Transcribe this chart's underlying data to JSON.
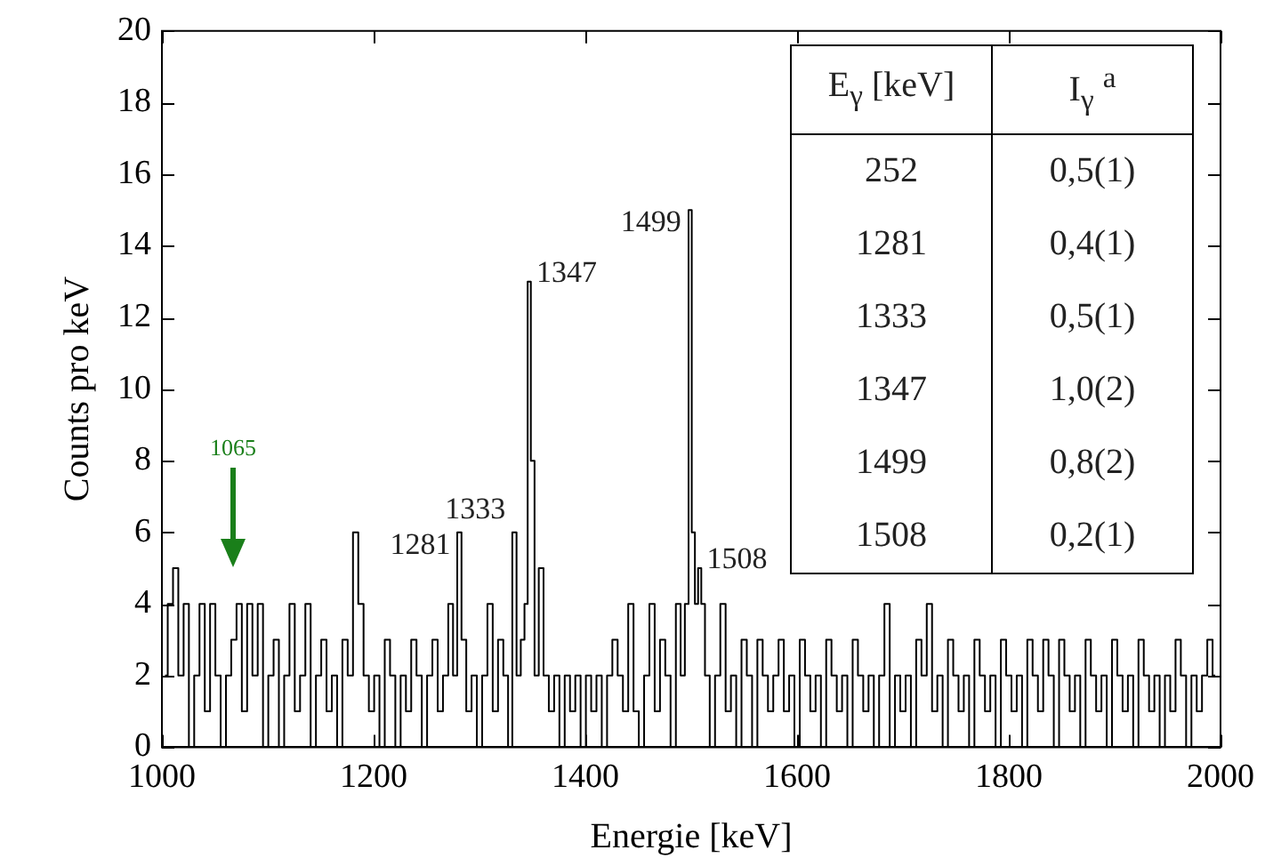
{
  "chart_data": {
    "type": "step",
    "xlabel": "Energie [keV]",
    "ylabel": "Counts pro keV",
    "xlim": [
      1000,
      2000
    ],
    "xticks": [
      1000,
      1200,
      1400,
      1600,
      1800,
      2000
    ],
    "ylim": [
      0,
      20
    ],
    "yticks": [
      0,
      2,
      4,
      6,
      8,
      10,
      12,
      14,
      16,
      18,
      20
    ],
    "grid": false,
    "legend": false,
    "series": [
      {
        "color": "#000000",
        "x": [
          1003,
          1008,
          1013,
          1018,
          1023,
          1028,
          1033,
          1038,
          1043,
          1048,
          1053,
          1058,
          1063,
          1068,
          1073,
          1078,
          1083,
          1088,
          1093,
          1098,
          1103,
          1108,
          1113,
          1118,
          1123,
          1128,
          1133,
          1138,
          1143,
          1148,
          1153,
          1158,
          1163,
          1168,
          1173,
          1178,
          1183,
          1188,
          1193,
          1198,
          1203,
          1208,
          1213,
          1218,
          1223,
          1228,
          1233,
          1238,
          1243,
          1248,
          1253,
          1258,
          1263,
          1268,
          1273,
          1277,
          1281,
          1285,
          1290,
          1295,
          1300,
          1305,
          1310,
          1315,
          1320,
          1325,
          1329,
          1333,
          1337,
          1341,
          1344,
          1347,
          1350,
          1354,
          1358,
          1363,
          1368,
          1373,
          1378,
          1383,
          1388,
          1393,
          1398,
          1403,
          1408,
          1413,
          1418,
          1423,
          1428,
          1433,
          1438,
          1443,
          1448,
          1453,
          1458,
          1463,
          1468,
          1473,
          1478,
          1483,
          1488,
          1492,
          1496,
          1499,
          1502,
          1505,
          1508,
          1511,
          1515,
          1520,
          1525,
          1530,
          1535,
          1540,
          1545,
          1550,
          1555,
          1560,
          1565,
          1570,
          1575,
          1580,
          1585,
          1590,
          1595,
          1600,
          1605,
          1610,
          1615,
          1620,
          1625,
          1630,
          1635,
          1640,
          1645,
          1650,
          1655,
          1660,
          1665,
          1670,
          1675,
          1680,
          1685,
          1690,
          1695,
          1700,
          1705,
          1710,
          1715,
          1720,
          1725,
          1730,
          1735,
          1740,
          1745,
          1750,
          1755,
          1760,
          1765,
          1770,
          1775,
          1780,
          1785,
          1790,
          1795,
          1800,
          1805,
          1810,
          1815,
          1820,
          1825,
          1830,
          1835,
          1840,
          1845,
          1850,
          1855,
          1860,
          1865,
          1870,
          1875,
          1880,
          1885,
          1890,
          1895,
          1900,
          1905,
          1910,
          1915,
          1920,
          1925,
          1930,
          1935,
          1940,
          1945,
          1950,
          1955,
          1960,
          1965,
          1970,
          1975,
          1980,
          1985,
          1990,
          1995
        ],
        "values": [
          2,
          4,
          5,
          2,
          4,
          0,
          2,
          4,
          1,
          4,
          2,
          0,
          2,
          3,
          4,
          1,
          4,
          2,
          4,
          0,
          2,
          3,
          0,
          2,
          4,
          1,
          2,
          4,
          0,
          2,
          3,
          1,
          2,
          0,
          3,
          2,
          6,
          4,
          2,
          1,
          2,
          0,
          3,
          2,
          0,
          2,
          1,
          3,
          2,
          0,
          2,
          3,
          1,
          2,
          4,
          2,
          6,
          3,
          1,
          2,
          0,
          2,
          4,
          1,
          3,
          2,
          0,
          6,
          2,
          3,
          4,
          13,
          8,
          2,
          5,
          2,
          1,
          2,
          0,
          2,
          1,
          2,
          0,
          2,
          1,
          2,
          0,
          2,
          3,
          2,
          1,
          4,
          1,
          0,
          2,
          4,
          1,
          3,
          2,
          0,
          4,
          2,
          4,
          15,
          6,
          4,
          5,
          4,
          2,
          0,
          2,
          4,
          1,
          2,
          0,
          3,
          2,
          0,
          3,
          2,
          1,
          2,
          3,
          1,
          2,
          0,
          3,
          2,
          1,
          2,
          0,
          3,
          2,
          1,
          2,
          0,
          3,
          2,
          1,
          2,
          0,
          2,
          4,
          0,
          2,
          1,
          2,
          0,
          3,
          2,
          4,
          1,
          2,
          0,
          3,
          2,
          1,
          2,
          0,
          3,
          2,
          1,
          2,
          0,
          3,
          2,
          1,
          2,
          0,
          3,
          2,
          1,
          3,
          2,
          0,
          3,
          2,
          1,
          2,
          0,
          3,
          2,
          1,
          2,
          0,
          3,
          2,
          1,
          2,
          0,
          3,
          2,
          1,
          2,
          0,
          2,
          1,
          3,
          2,
          0,
          2,
          1,
          2,
          3,
          2
        ]
      }
    ],
    "annotations": [
      "1065",
      {
        "text": "1281",
        "x": 1281,
        "y": 6
      },
      {
        "text": "1333",
        "x": 1333,
        "y": 6
      },
      {
        "text": "1347",
        "x": 1347,
        "y": 13
      },
      {
        "text": "1499",
        "x": 1499,
        "y": 15
      },
      {
        "text": "1508",
        "x": 1508,
        "y": 5
      },
      "E$_{γ}$ [keV]",
      "I$_{γ}$ $^{a}$",
      "252",
      "0,5(1)",
      "1281",
      "0,4(1)",
      "1333",
      "0,5(1)",
      "1347",
      "1,0(2)",
      "1499",
      "0,8(2)",
      "1508",
      "0,2(1)"
    ]
  }
}
